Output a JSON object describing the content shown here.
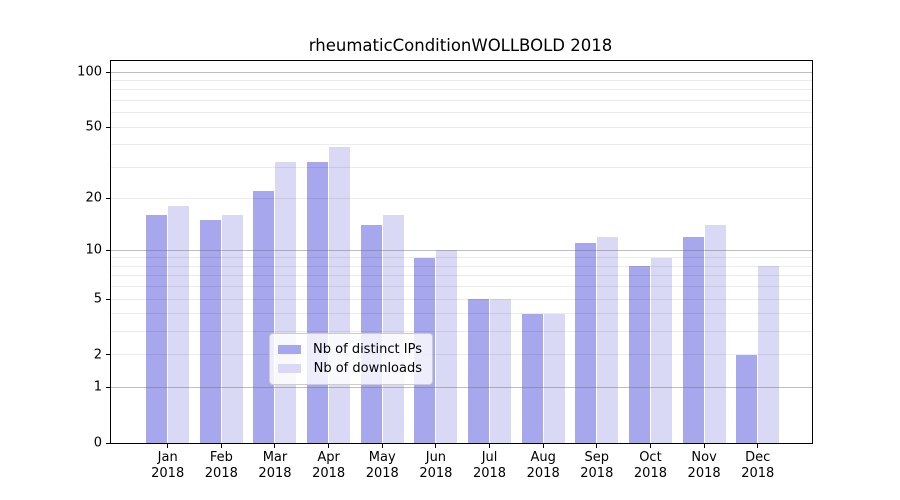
{
  "chart_data": {
    "type": "bar",
    "title": "rheumaticConditionWOLLBOLD 2018",
    "categories": [
      "Jan",
      "Feb",
      "Mar",
      "Apr",
      "May",
      "Jun",
      "Jul",
      "Aug",
      "Sep",
      "Oct",
      "Nov",
      "Dec"
    ],
    "x_year": "2018",
    "series": [
      {
        "name": "Nb of distinct IPs",
        "color": "#a7a7ee",
        "values": [
          16,
          15,
          22,
          32,
          14,
          9,
          5,
          4,
          11,
          8,
          12,
          2
        ]
      },
      {
        "name": "Nb of downloads",
        "color": "#d9d9f6",
        "values": [
          18,
          16,
          32,
          39,
          16,
          10,
          5,
          4,
          12,
          9,
          14,
          8
        ]
      }
    ],
    "y_axis": {
      "scale": "log1p",
      "tick_values": [
        0,
        1,
        2,
        5,
        10,
        20,
        50,
        100
      ],
      "tick_labels": [
        "0",
        "1",
        "2",
        "5",
        "10",
        "20",
        "50",
        "100"
      ],
      "max": 115,
      "minor_grid_values": [
        2,
        3,
        4,
        5,
        6,
        7,
        8,
        9,
        20,
        30,
        40,
        50,
        60,
        70,
        80,
        90
      ],
      "major_grid_values": [
        1,
        10,
        100
      ]
    },
    "grid": true,
    "legend_position": "lower center",
    "colors": {
      "minor_grid": "rgba(0,0,0,0.08)",
      "major_grid": "rgba(110,110,110,0.45)",
      "axis": "#000000"
    }
  }
}
